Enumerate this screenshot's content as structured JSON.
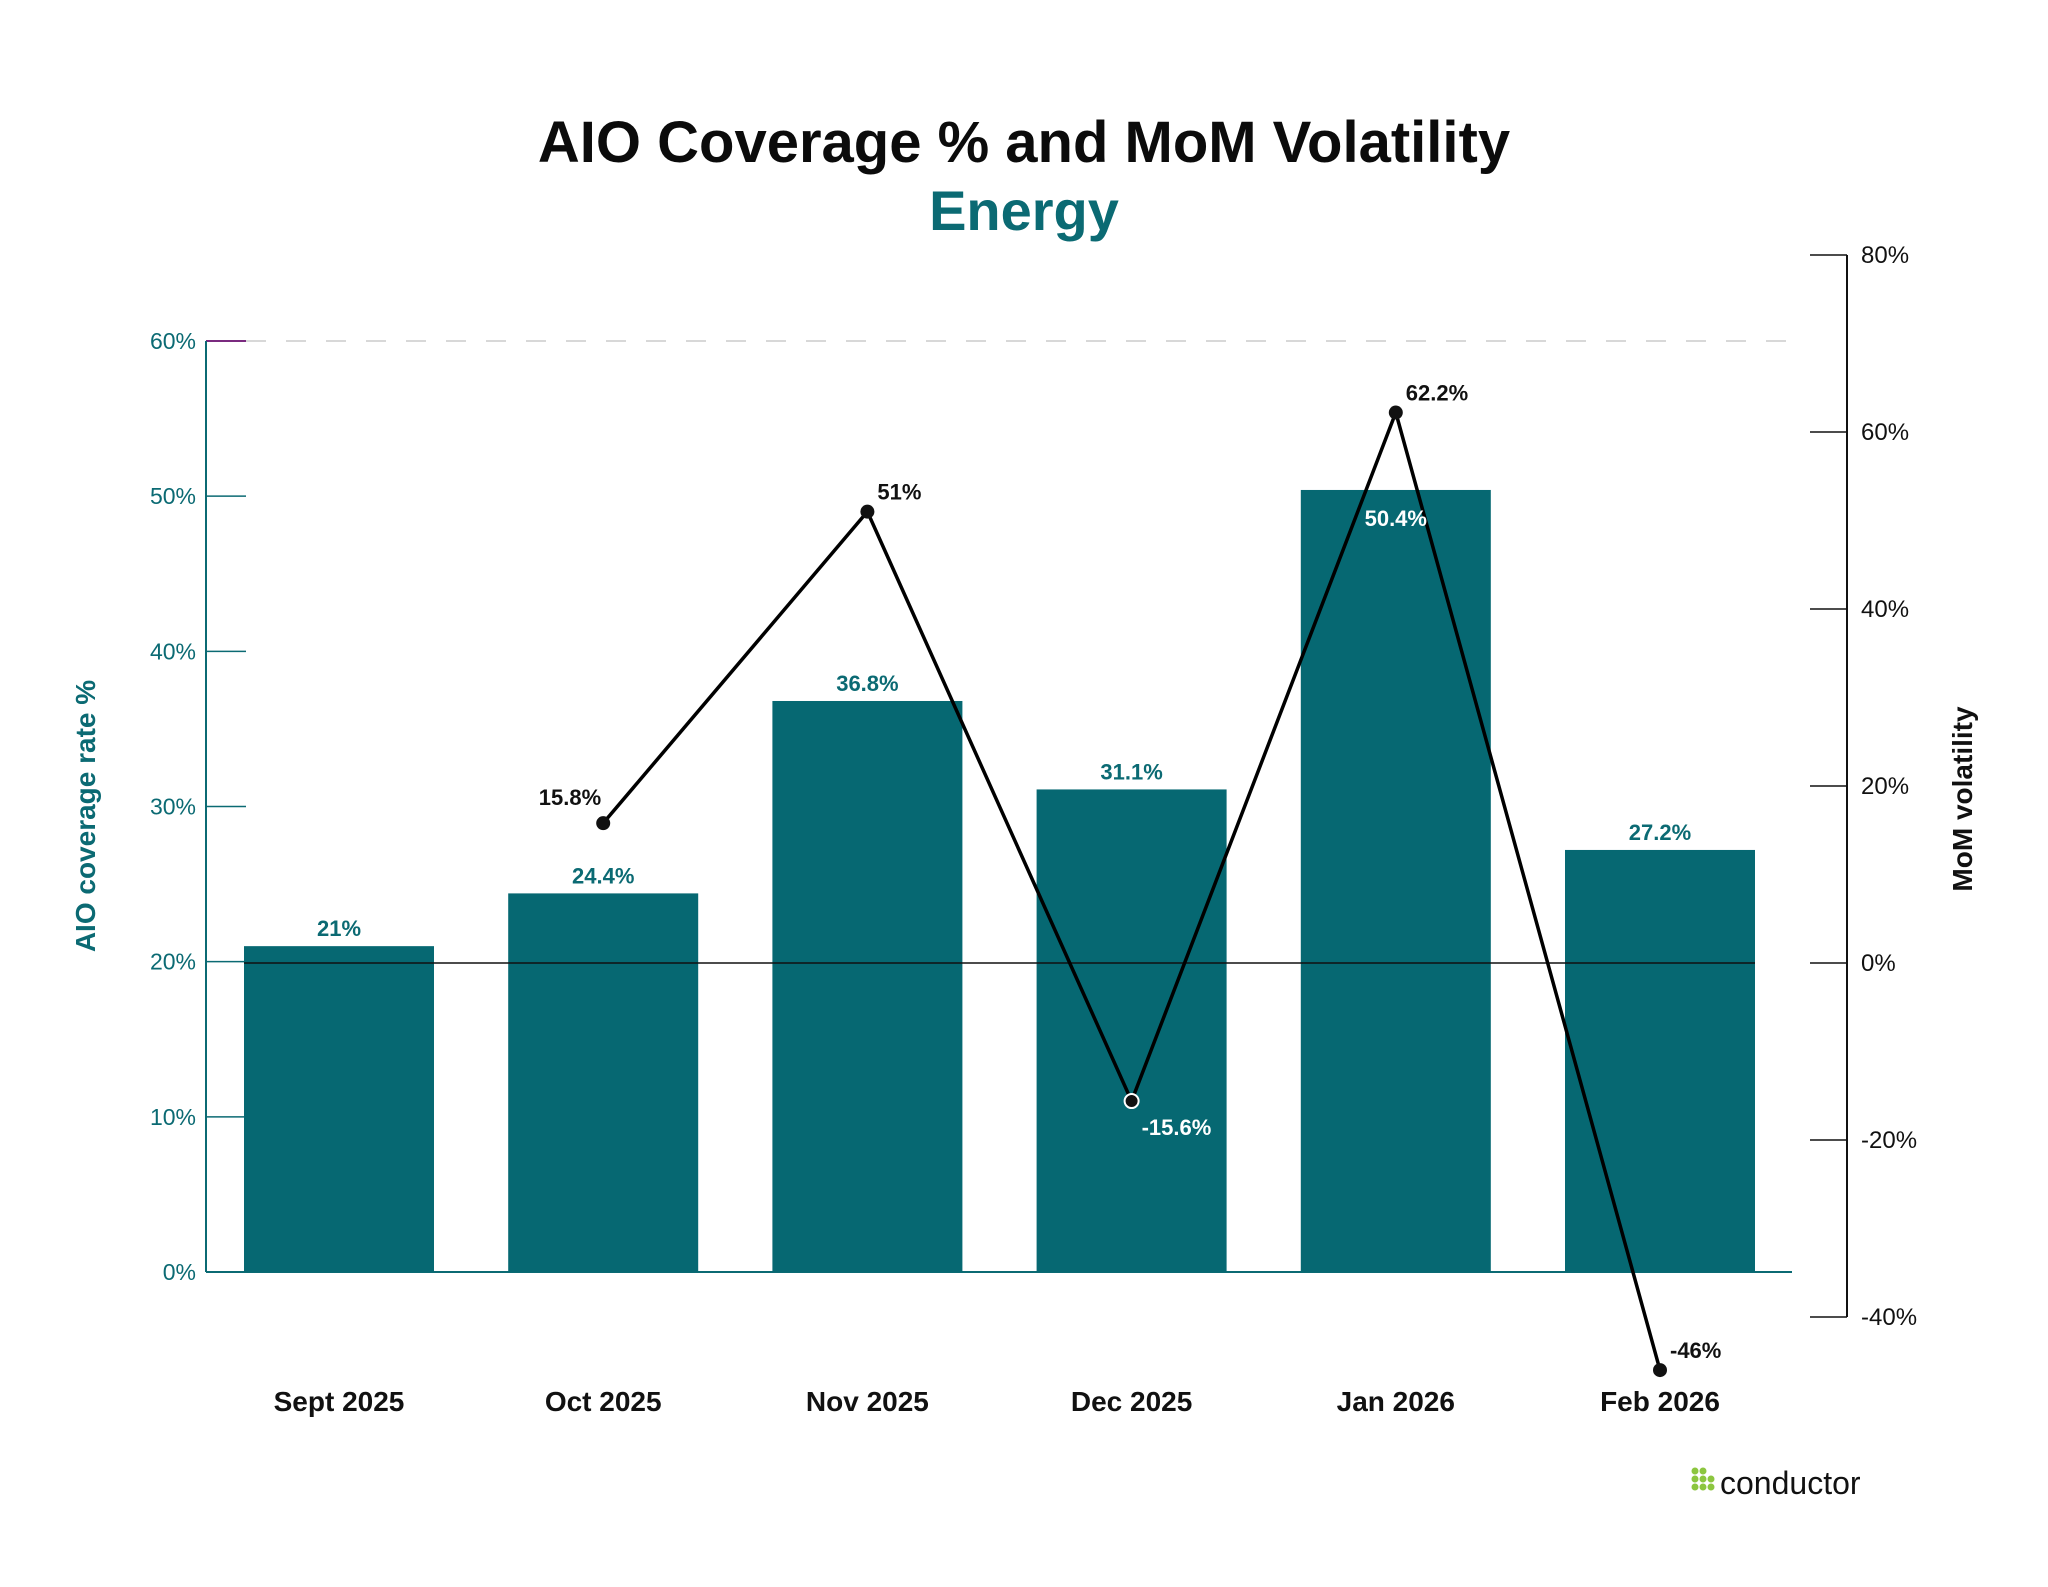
{
  "chart_data": {
    "type": "bar+line",
    "title": "AIO Coverage % and MoM Volatility",
    "subtitle": "Energy",
    "categories": [
      "Sept 2025",
      "Oct 2025",
      "Nov 2025",
      "Dec 2025",
      "Jan 2026",
      "Feb 2026"
    ],
    "series": [
      {
        "type": "bar",
        "axis": "left",
        "values": [
          21,
          24.4,
          36.8,
          31.1,
          50.4,
          27.2
        ],
        "labels": [
          "21%",
          "24.4%",
          "36.8%",
          "31.1%",
          "50.4%",
          "27.2%"
        ],
        "color": "#066872"
      },
      {
        "type": "line",
        "axis": "right",
        "values": [
          null,
          15.8,
          51,
          -15.6,
          62.2,
          -46
        ],
        "labels": [
          "",
          "15.8%",
          "51%",
          "-15.6%",
          "62.2%",
          "-46%"
        ],
        "color": "#000000"
      }
    ],
    "left_axis": {
      "label": "AIO coverage rate %",
      "ylim": [
        0,
        60
      ],
      "ticks": [
        0,
        10,
        20,
        30,
        40,
        50,
        60
      ],
      "tick_labels": [
        "0%",
        "10%",
        "20%",
        "30%",
        "40%",
        "50%",
        "60%"
      ],
      "color": "#0b6a73"
    },
    "right_axis": {
      "label": "MoM volatility",
      "ylim": [
        -40,
        80
      ],
      "ticks": [
        -40,
        -20,
        0,
        20,
        40,
        60,
        80
      ],
      "tick_labels": [
        "-40%",
        "-20%",
        "0%",
        "20%",
        "40%",
        "60%",
        "80%"
      ]
    },
    "grid": false
  },
  "brand": {
    "logo_text": "conductor",
    "logo_color": "#8cc63f"
  }
}
